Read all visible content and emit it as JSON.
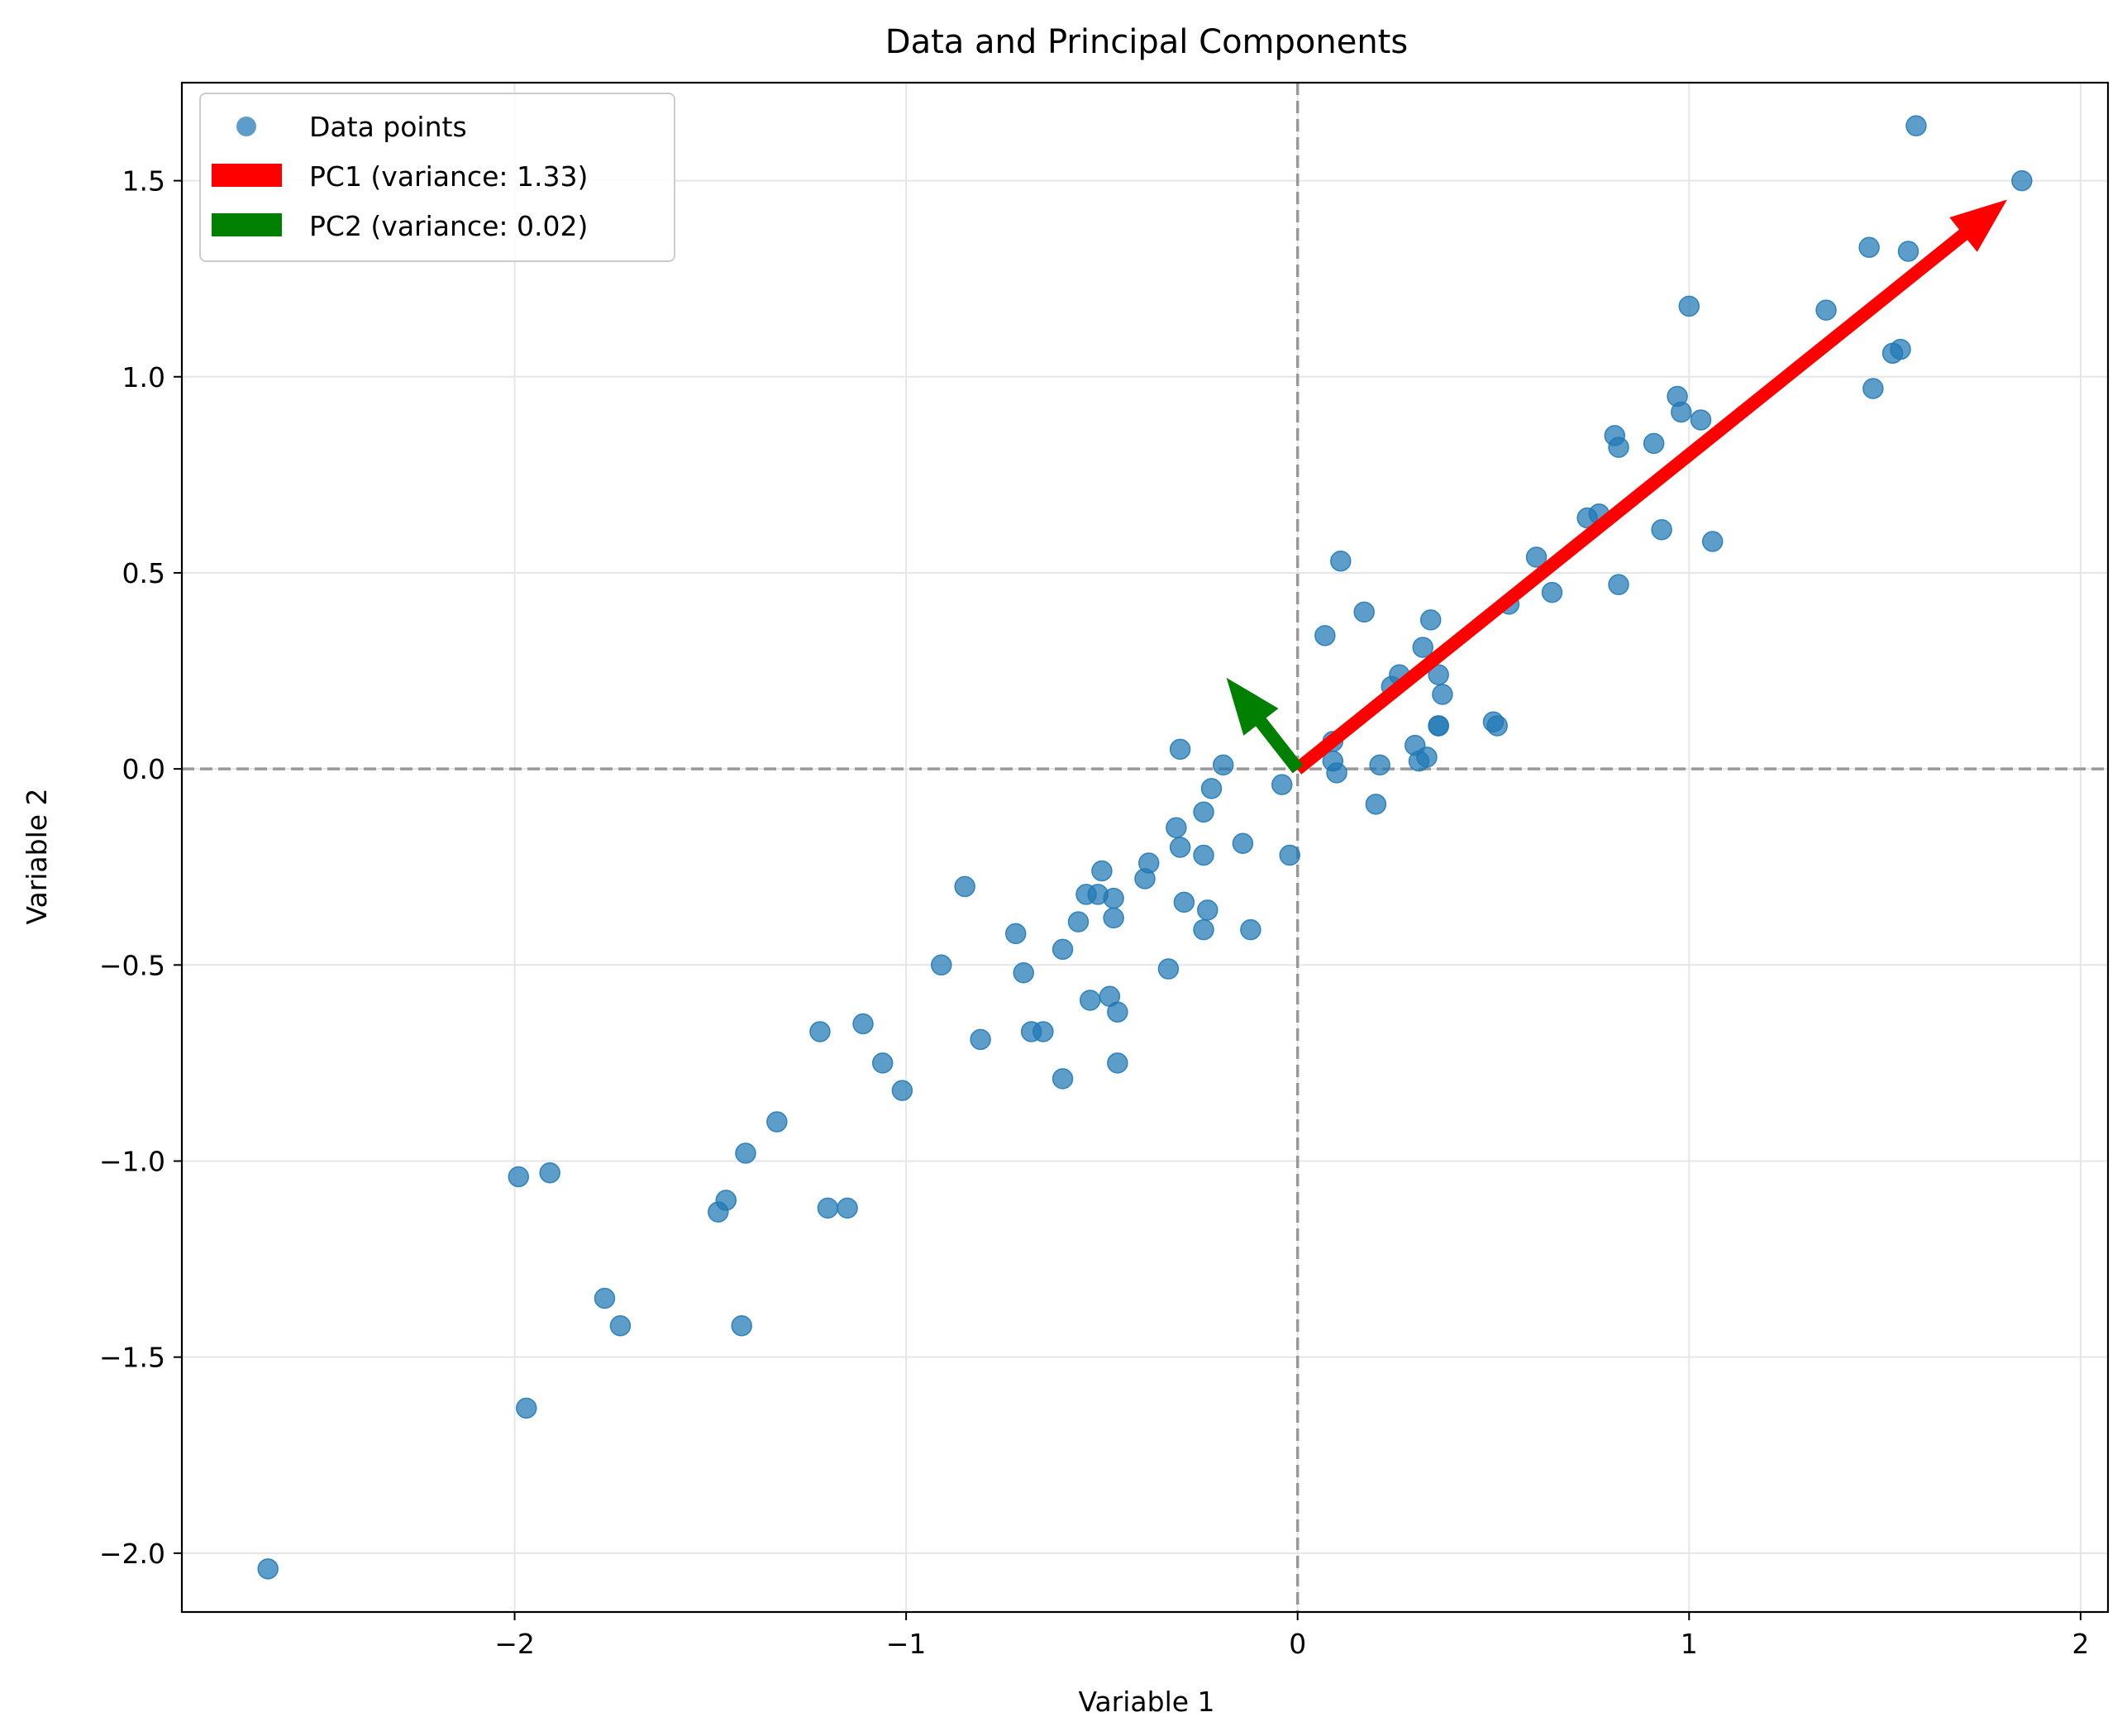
{
  "chart_data": {
    "type": "scatter",
    "title": "Data and Principal Components",
    "xlabel": "Variable 1",
    "ylabel": "Variable 2",
    "xlim": [
      -2.85,
      2.07
    ],
    "ylim": [
      -2.15,
      1.75
    ],
    "grid": true,
    "legend_position": "upper-left",
    "x_ticks": [
      -2,
      -1,
      0,
      1,
      2
    ],
    "x_tick_labels": [
      "−2",
      "−1",
      "0",
      "1",
      "2"
    ],
    "y_ticks": [
      -2.0,
      -1.5,
      -1.0,
      -0.5,
      0.0,
      0.5,
      1.0,
      1.5
    ],
    "y_tick_labels": [
      "−2.0",
      "−1.5",
      "−1.0",
      "−0.5",
      "0.0",
      "0.5",
      "1.0",
      "1.5"
    ],
    "reference_lines": {
      "x": 0,
      "y": 0,
      "style": "dashed",
      "color": "#999999"
    },
    "series": [
      {
        "name": "Data points",
        "color": "#1f77b4",
        "points": [
          [
            -2.63,
            -2.04
          ],
          [
            -1.97,
            -1.63
          ],
          [
            -1.99,
            -1.04
          ],
          [
            -1.91,
            -1.03
          ],
          [
            -1.77,
            -1.35
          ],
          [
            -1.73,
            -1.42
          ],
          [
            -1.48,
            -1.13
          ],
          [
            -1.46,
            -1.1
          ],
          [
            -1.42,
            -1.42
          ],
          [
            -1.41,
            -0.98
          ],
          [
            -1.33,
            -0.9
          ],
          [
            -1.22,
            -0.67
          ],
          [
            -1.2,
            -1.12
          ],
          [
            -1.15,
            -1.12
          ],
          [
            -1.11,
            -0.65
          ],
          [
            -1.06,
            -0.75
          ],
          [
            -1.01,
            -0.82
          ],
          [
            -0.91,
            -0.5
          ],
          [
            -0.85,
            -0.3
          ],
          [
            -0.81,
            -0.69
          ],
          [
            -0.72,
            -0.42
          ],
          [
            -0.7,
            -0.52
          ],
          [
            -0.68,
            -0.67
          ],
          [
            -0.65,
            -0.67
          ],
          [
            -0.6,
            -0.79
          ],
          [
            -0.6,
            -0.46
          ],
          [
            -0.56,
            -0.39
          ],
          [
            -0.54,
            -0.32
          ],
          [
            -0.53,
            -0.59
          ],
          [
            -0.51,
            -0.32
          ],
          [
            -0.5,
            -0.26
          ],
          [
            -0.48,
            -0.58
          ],
          [
            -0.47,
            -0.33
          ],
          [
            -0.47,
            -0.38
          ],
          [
            -0.46,
            -0.62
          ],
          [
            -0.46,
            -0.75
          ],
          [
            -0.39,
            -0.28
          ],
          [
            -0.38,
            -0.24
          ],
          [
            -0.33,
            -0.51
          ],
          [
            -0.31,
            -0.15
          ],
          [
            -0.3,
            -0.2
          ],
          [
            -0.3,
            0.05
          ],
          [
            -0.29,
            -0.34
          ],
          [
            -0.24,
            -0.11
          ],
          [
            -0.24,
            -0.22
          ],
          [
            -0.24,
            -0.41
          ],
          [
            -0.23,
            -0.36
          ],
          [
            -0.22,
            -0.05
          ],
          [
            -0.19,
            0.01
          ],
          [
            -0.14,
            -0.19
          ],
          [
            -0.12,
            -0.41
          ],
          [
            -0.04,
            -0.04
          ],
          [
            -0.02,
            -0.22
          ],
          [
            0.07,
            0.34
          ],
          [
            0.09,
            0.07
          ],
          [
            0.09,
            0.02
          ],
          [
            0.1,
            -0.01
          ],
          [
            0.11,
            0.53
          ],
          [
            0.17,
            0.4
          ],
          [
            0.2,
            -0.09
          ],
          [
            0.21,
            0.01
          ],
          [
            0.24,
            0.21
          ],
          [
            0.26,
            0.24
          ],
          [
            0.3,
            0.06
          ],
          [
            0.31,
            0.02
          ],
          [
            0.32,
            0.31
          ],
          [
            0.33,
            0.03
          ],
          [
            0.34,
            0.38
          ],
          [
            0.36,
            0.24
          ],
          [
            0.36,
            0.11
          ],
          [
            0.36,
            0.11
          ],
          [
            0.37,
            0.19
          ],
          [
            0.5,
            0.12
          ],
          [
            0.51,
            0.11
          ],
          [
            0.54,
            0.42
          ],
          [
            0.61,
            0.54
          ],
          [
            0.65,
            0.45
          ],
          [
            0.74,
            0.64
          ],
          [
            0.77,
            0.65
          ],
          [
            0.81,
            0.85
          ],
          [
            0.82,
            0.82
          ],
          [
            0.82,
            0.47
          ],
          [
            0.91,
            0.83
          ],
          [
            0.93,
            0.61
          ],
          [
            0.97,
            0.95
          ],
          [
            0.98,
            0.91
          ],
          [
            1.0,
            1.18
          ],
          [
            1.03,
            0.89
          ],
          [
            1.06,
            0.58
          ],
          [
            1.35,
            1.17
          ],
          [
            1.46,
            1.33
          ],
          [
            1.47,
            0.97
          ],
          [
            1.52,
            1.06
          ],
          [
            1.54,
            1.07
          ],
          [
            1.56,
            1.32
          ],
          [
            1.58,
            1.64
          ],
          [
            1.85,
            1.5
          ]
        ]
      }
    ],
    "arrows": [
      {
        "name": "PC1 (variance: 1.33)",
        "color": "#ff0000",
        "x0": 0,
        "y0": 0,
        "x1": 1.81,
        "y1": 1.45
      },
      {
        "name": "PC2 (variance: 0.02)",
        "color": "#008000",
        "x0": 0,
        "y0": 0,
        "x1": -0.18,
        "y1": 0.23
      }
    ],
    "legend": [
      "Data points",
      "PC1 (variance: 1.33)",
      "PC2 (variance: 0.02)"
    ]
  }
}
